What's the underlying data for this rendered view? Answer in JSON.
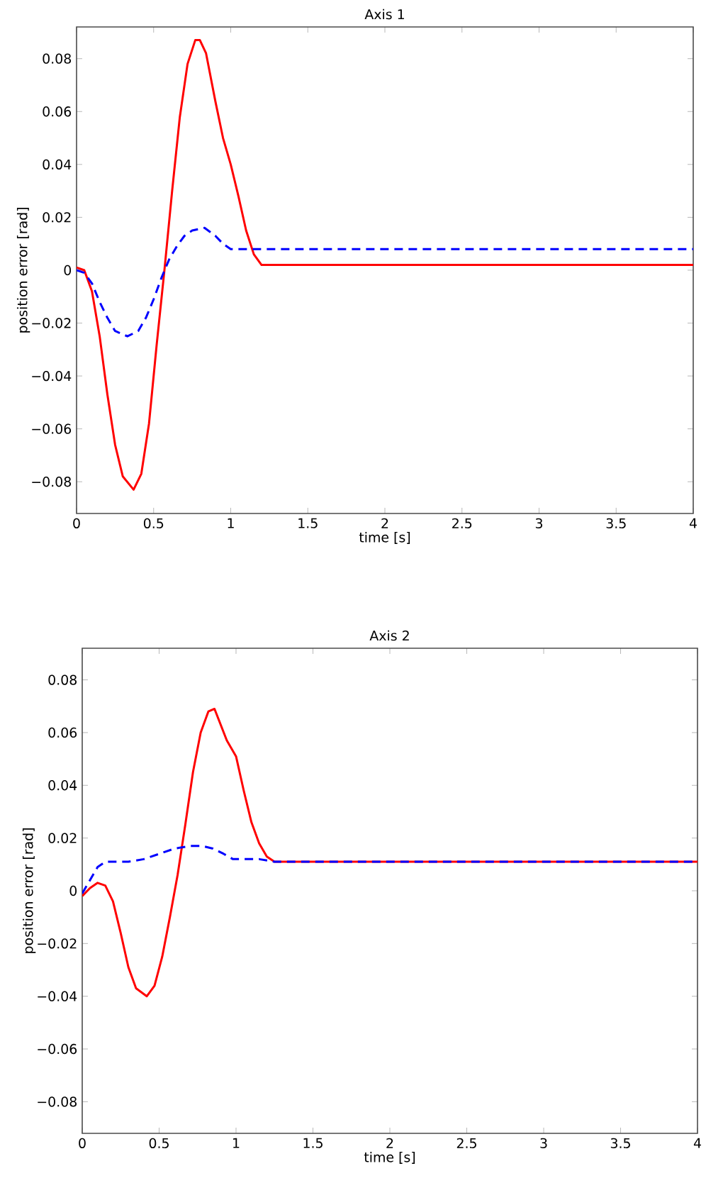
{
  "chart_data": [
    {
      "type": "line",
      "title": "Axis 1",
      "xlabel": "time [s]",
      "ylabel": "position error [rad]",
      "xlim": [
        0,
        4
      ],
      "ylim": [
        -0.092,
        0.092
      ],
      "xticks": [
        0,
        0.5,
        1,
        1.5,
        2,
        2.5,
        3,
        3.5,
        4
      ],
      "yticks": [
        {
          "value": -0.08,
          "label": "−0.08"
        },
        {
          "value": -0.06,
          "label": "−0.06"
        },
        {
          "value": -0.04,
          "label": "−0.04"
        },
        {
          "value": -0.02,
          "label": "−0.02"
        },
        0,
        0.02,
        0.04,
        0.06,
        0.08
      ],
      "series": [
        {
          "color": "#ff0000",
          "line_style": "solid",
          "x": [
            0,
            0.05,
            0.1,
            0.15,
            0.2,
            0.25,
            0.3,
            0.37,
            0.42,
            0.47,
            0.52,
            0.57,
            0.62,
            0.67,
            0.72,
            0.77,
            0.8,
            0.84,
            0.9,
            0.95,
            1.0,
            1.05,
            1.1,
            1.15,
            1.2,
            1.25,
            1.3,
            4
          ],
          "values": [
            0.001,
            0.0,
            -0.008,
            -0.025,
            -0.047,
            -0.066,
            -0.078,
            -0.083,
            -0.077,
            -0.058,
            -0.028,
            0.0,
            0.03,
            0.058,
            0.078,
            0.087,
            0.087,
            0.082,
            0.064,
            0.05,
            0.04,
            0.028,
            0.015,
            0.006,
            0.002,
            0.002,
            0.002,
            0.002
          ]
        },
        {
          "color": "#0000ff",
          "line_style": "dashed",
          "x": [
            0,
            0.05,
            0.1,
            0.15,
            0.2,
            0.25,
            0.33,
            0.4,
            0.45,
            0.5,
            0.55,
            0.6,
            0.65,
            0.7,
            0.75,
            0.83,
            0.9,
            0.95,
            1.0,
            1.05,
            1.1,
            4
          ],
          "values": [
            0,
            -0.001,
            -0.005,
            -0.012,
            -0.018,
            -0.023,
            -0.025,
            -0.023,
            -0.018,
            -0.011,
            -0.003,
            0.004,
            0.009,
            0.013,
            0.015,
            0.016,
            0.013,
            0.01,
            0.008,
            0.008,
            0.008,
            0.008
          ]
        }
      ]
    },
    {
      "type": "line",
      "title": "Axis 2",
      "xlabel": "time [s]",
      "ylabel": "position error [rad]",
      "xlim": [
        0,
        4
      ],
      "ylim": [
        -0.092,
        0.092
      ],
      "xticks": [
        0,
        0.5,
        1,
        1.5,
        2,
        2.5,
        3,
        3.5,
        4
      ],
      "yticks": [
        {
          "value": -0.08,
          "label": "−0.08"
        },
        {
          "value": -0.06,
          "label": "−0.06"
        },
        {
          "value": -0.04,
          "label": "−0.04"
        },
        {
          "value": -0.02,
          "label": "−0.02"
        },
        0,
        0.02,
        0.04,
        0.06,
        0.08
      ],
      "series": [
        {
          "color": "#ff0000",
          "line_style": "solid",
          "x": [
            0,
            0.05,
            0.1,
            0.15,
            0.2,
            0.25,
            0.3,
            0.35,
            0.42,
            0.47,
            0.52,
            0.57,
            0.62,
            0.67,
            0.72,
            0.77,
            0.82,
            0.86,
            0.9,
            0.94,
            1.0,
            1.05,
            1.1,
            1.15,
            1.2,
            1.25,
            4
          ],
          "values": [
            -0.002,
            0.001,
            0.003,
            0.002,
            -0.004,
            -0.016,
            -0.029,
            -0.037,
            -0.04,
            -0.036,
            -0.025,
            -0.01,
            0.006,
            0.025,
            0.045,
            0.06,
            0.068,
            0.069,
            0.063,
            0.057,
            0.051,
            0.038,
            0.026,
            0.018,
            0.013,
            0.011,
            0.011
          ]
        },
        {
          "color": "#0000ff",
          "line_style": "dashed",
          "x": [
            0,
            0.05,
            0.1,
            0.15,
            0.2,
            0.3,
            0.4,
            0.5,
            0.6,
            0.7,
            0.78,
            0.85,
            0.92,
            0.98,
            1.05,
            1.15,
            1.25,
            4
          ],
          "values": [
            -0.001,
            0.004,
            0.009,
            0.011,
            0.011,
            0.011,
            0.012,
            0.014,
            0.016,
            0.017,
            0.017,
            0.016,
            0.014,
            0.012,
            0.012,
            0.012,
            0.011,
            0.011
          ]
        }
      ]
    }
  ]
}
